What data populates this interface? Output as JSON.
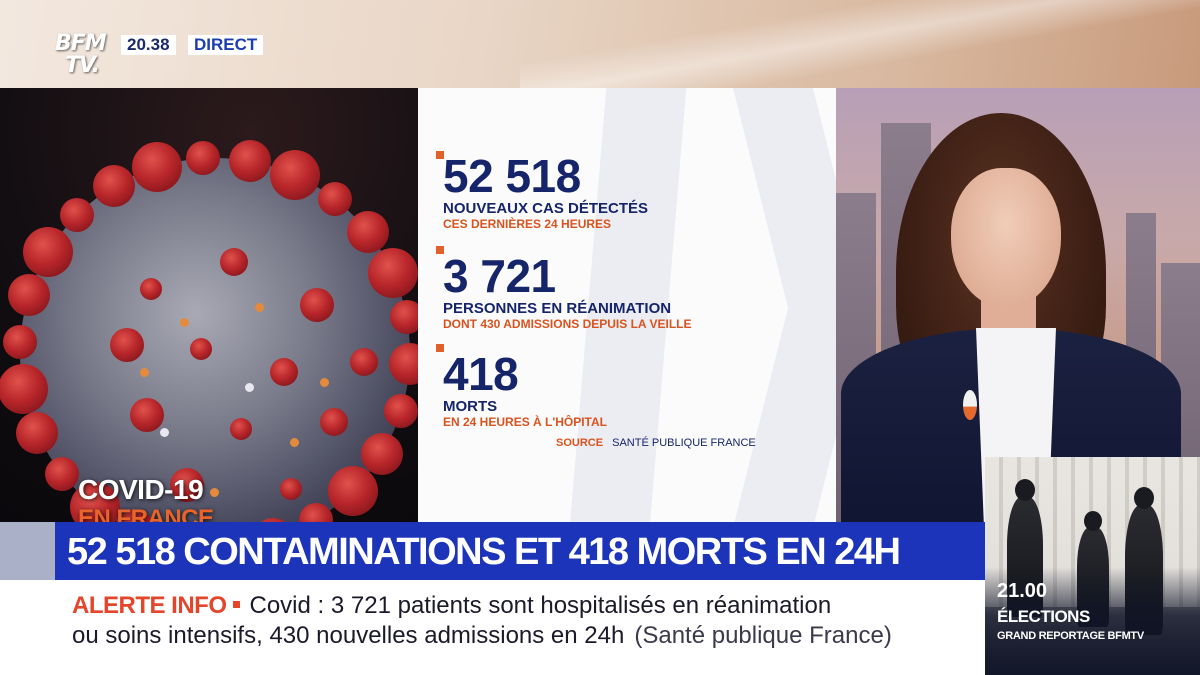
{
  "channel": {
    "logo_line1": "BFM",
    "logo_line2": "TV.",
    "time": "20.38",
    "live_label": "DIRECT"
  },
  "covid_panel": {
    "title": "COVID-19",
    "subtitle": "EN FRANCE"
  },
  "stats": [
    {
      "number": "52 518",
      "label": "NOUVEAUX CAS DÉTECTÉS",
      "sub": "CES DERNIÈRES 24 HEURES"
    },
    {
      "number": "3 721",
      "label": "PERSONNES EN RÉANIMATION",
      "sub": "DONT 430 ADMISSIONS DEPUIS LA VEILLE"
    },
    {
      "number": "418",
      "label": "MORTS",
      "sub": "EN 24 HEURES À L'HÔPITAL"
    }
  ],
  "source": {
    "key": "SOURCE",
    "value": "SANTÉ PUBLIQUE FRANCE"
  },
  "headline": "52 518 CONTAMINATIONS ET 418 MORTS EN 24H",
  "ticker": {
    "alert_label": "ALERTE INFO",
    "line1": "Covid : 3 721 patients sont hospitalisés en réanimation",
    "line2": "ou soins intensifs, 430 nouvelles admissions en 24h",
    "source": "(Santé publique France)"
  },
  "promo": {
    "time": "21.00",
    "title": "ÉLECTIONS",
    "subtitle": "GRAND REPORTAGE BFMTV"
  },
  "colors": {
    "navy": "#16256a",
    "accent_orange": "#d9531f",
    "headline_blue": "#1c34b9",
    "alert_red": "#e4452b"
  }
}
